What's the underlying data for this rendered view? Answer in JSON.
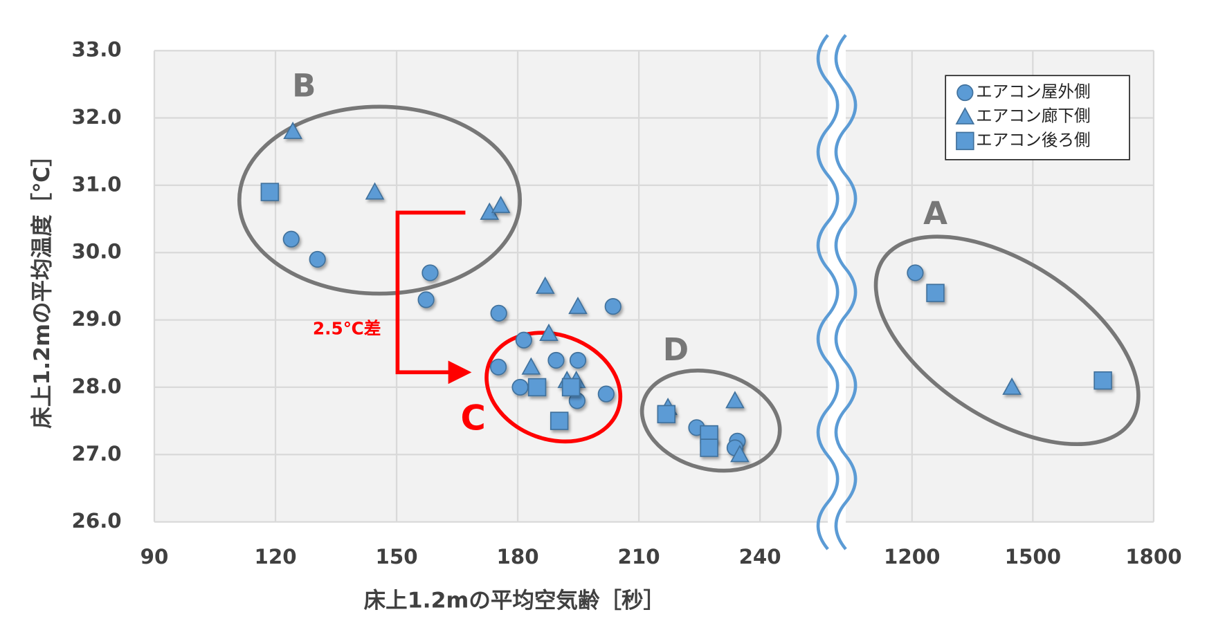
{
  "chart_data": {
    "type": "scatter",
    "x_label": "床上1.2mの平均空気齢［秒］",
    "y_label": "床上1.2mの平均温度［℃］",
    "xlim": [
      90,
      1800
    ],
    "xbreak": [
      256.8,
      1035.5
    ],
    "xticks": [
      90,
      120,
      150,
      180,
      210,
      240,
      1200,
      1500,
      1800
    ],
    "ylim": [
      26,
      33
    ],
    "yticks": [
      {
        "value": 26,
        "label": "26.0"
      },
      {
        "value": 27,
        "label": "27.0"
      },
      {
        "value": 28,
        "label": "28.0"
      },
      {
        "value": 29,
        "label": "29.0"
      },
      {
        "value": 30,
        "label": "30.0"
      },
      {
        "value": 31,
        "label": "31.0"
      },
      {
        "value": 32,
        "label": "32.0"
      },
      {
        "value": 33,
        "label": "33.0"
      }
    ],
    "grid": true,
    "legend": "upper right",
    "series": [
      {
        "name": "エアコン屋外側",
        "marker": "circle",
        "color": "#5b9bd5",
        "x": [
          123.9,
          130.4,
          158.3,
          157.3,
          175.3,
          181.5,
          175.2,
          189.5,
          194.9,
          180.6,
          194.7,
          201.9,
          203.6,
          224.3,
          234.4,
          233.8,
          1208
        ],
        "values": [
          30.2,
          29.9,
          29.7,
          29.3,
          29.1,
          28.7,
          28.3,
          28.4,
          28.4,
          28.0,
          27.8,
          27.9,
          29.2,
          27.4,
          27.2,
          27.1,
          29.7
        ]
      },
      {
        "name": "エアコン廊下側",
        "marker": "triangle",
        "color": "#5b9bd5",
        "x": [
          124.3,
          144.6,
          173.0,
          175.8,
          186.8,
          194.9,
          187.7,
          183.3,
          192.2,
          194.5,
          217.2,
          233.8,
          235.0,
          1448
        ],
        "values": [
          31.8,
          30.9,
          30.6,
          30.7,
          29.5,
          29.2,
          28.8,
          28.3,
          28.1,
          28.1,
          27.7,
          27.8,
          27.0,
          28.0
        ]
      },
      {
        "name": "エアコン後ろ側",
        "marker": "square",
        "color": "#5b9bd5",
        "x": [
          118.6,
          184.8,
          193.2,
          190.3,
          216.8,
          227.4,
          227.4,
          1258,
          1674
        ],
        "values": [
          30.9,
          28.0,
          28.0,
          27.5,
          27.6,
          27.3,
          27.1,
          29.4,
          28.1
        ]
      }
    ],
    "annotations": [
      "A",
      "B",
      "C",
      "D",
      "2.5℃差"
    ]
  }
}
